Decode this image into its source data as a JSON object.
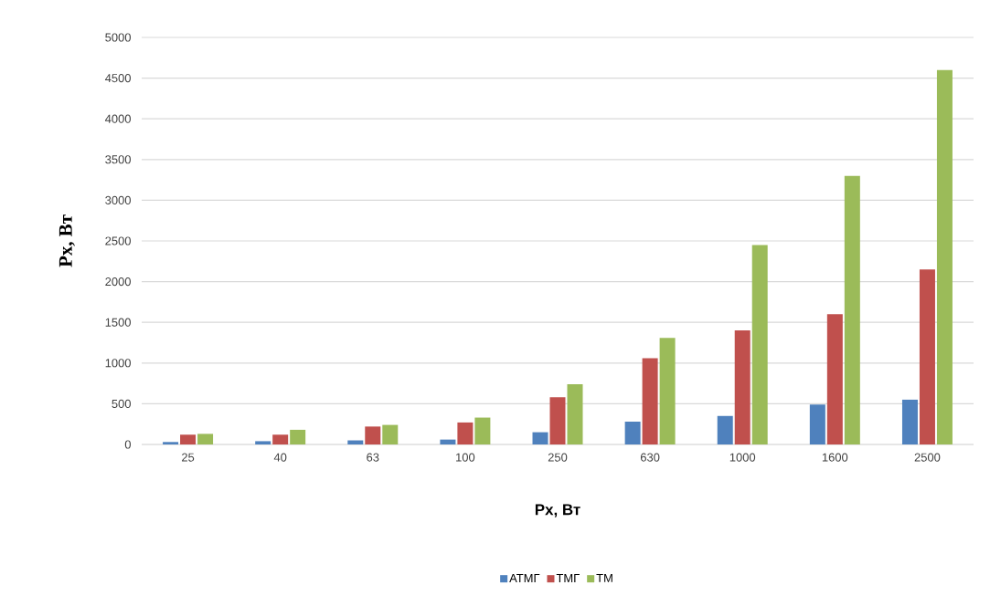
{
  "chart_data": {
    "type": "bar",
    "xlabel": "Рх, Вт",
    "ylabel": "Рх, Вт",
    "categories": [
      "25",
      "40",
      "63",
      "100",
      "250",
      "630",
      "1000",
      "1600",
      "2500"
    ],
    "series": [
      {
        "name": "АТМГ",
        "color": "#4f81bd",
        "values": [
          30,
          40,
          50,
          60,
          150,
          280,
          350,
          490,
          550
        ]
      },
      {
        "name": "ТМГ",
        "color": "#c0504d",
        "values": [
          120,
          120,
          220,
          270,
          580,
          1060,
          1400,
          1600,
          2150
        ]
      },
      {
        "name": "ТМ",
        "color": "#9bbb59",
        "values": [
          130,
          180,
          240,
          330,
          740,
          1310,
          2450,
          3300,
          4600
        ]
      }
    ],
    "ylim": [
      0,
      5000
    ],
    "yticks": [
      0,
      500,
      1000,
      1500,
      2000,
      2500,
      3000,
      3500,
      4000,
      4500,
      5000
    ],
    "grid": "y",
    "legend": "bottom"
  }
}
